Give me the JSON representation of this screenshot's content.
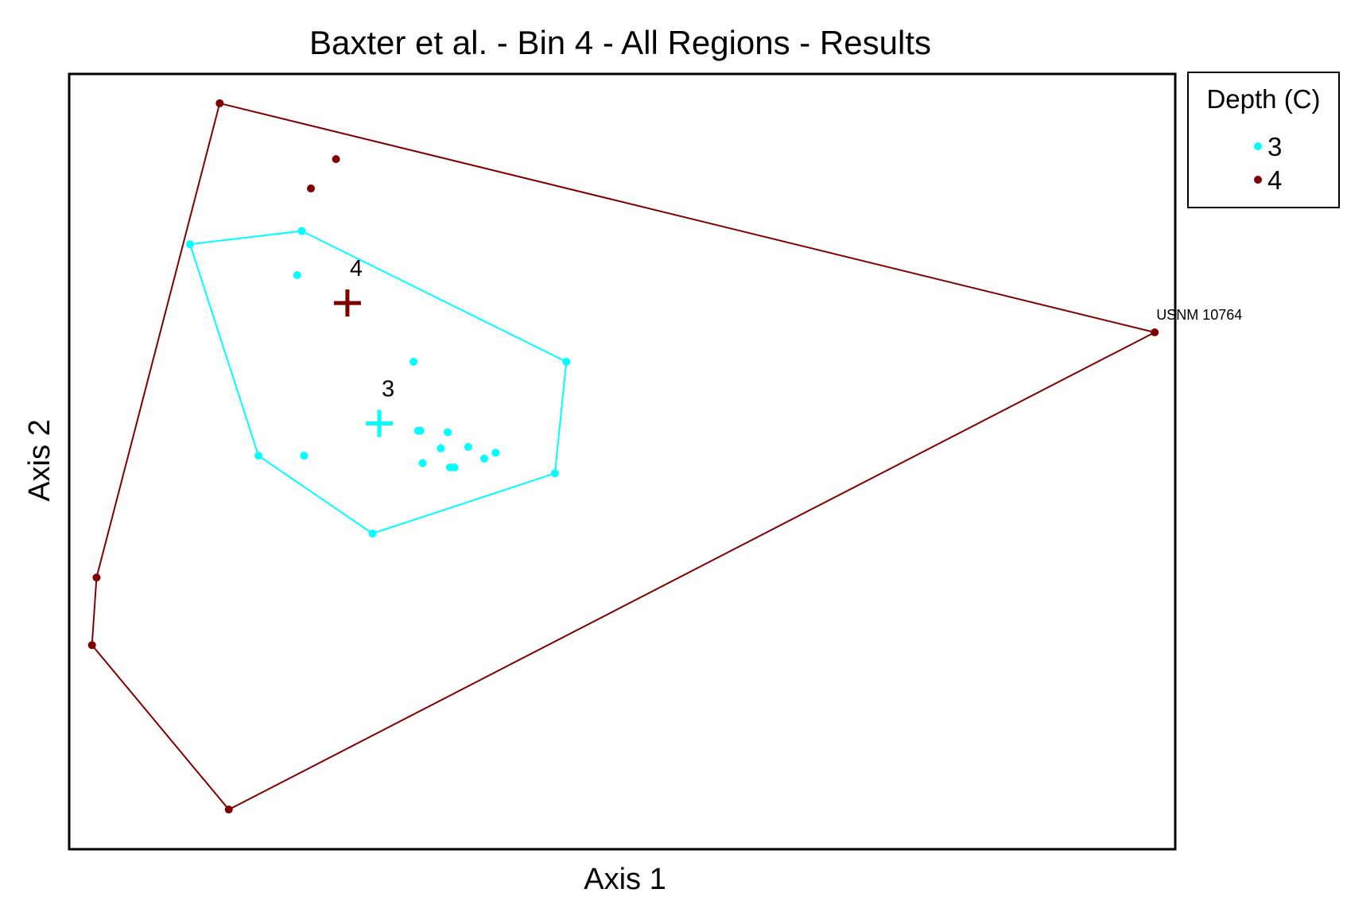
{
  "chart_data": {
    "type": "scatter",
    "title": "Baxter et al. - Bin 4 - All Regions - Results",
    "xlabel": "Axis 1",
    "ylabel": "Axis 2",
    "xlim": [
      -0.25,
      4.6
    ],
    "ylim": [
      -2.93,
      2.35
    ],
    "grid": false,
    "legend": {
      "title": "Depth (C)",
      "placement": "outside-top-right"
    },
    "series": [
      {
        "name": "3",
        "color": "#00ffff",
        "points": [
          [
            0.28,
            1.19
          ],
          [
            0.77,
            1.28
          ],
          [
            0.75,
            0.98
          ],
          [
            1.26,
            0.39
          ],
          [
            0.58,
            -0.25
          ],
          [
            0.78,
            -0.25
          ],
          [
            1.08,
            -0.78
          ],
          [
            1.88,
            -0.37
          ],
          [
            1.93,
            0.39
          ],
          [
            1.28,
            -0.08
          ],
          [
            1.29,
            -0.08
          ],
          [
            1.41,
            -0.09
          ],
          [
            1.5,
            -0.19
          ],
          [
            1.62,
            -0.23
          ],
          [
            1.38,
            -0.2
          ],
          [
            1.57,
            -0.27
          ],
          [
            1.42,
            -0.33
          ],
          [
            1.44,
            -0.33
          ],
          [
            1.3,
            -0.3
          ]
        ],
        "hull": [
          [
            0.28,
            1.19
          ],
          [
            0.77,
            1.28
          ],
          [
            1.93,
            0.39
          ],
          [
            1.88,
            -0.37
          ],
          [
            1.08,
            -0.78
          ],
          [
            0.58,
            -0.25
          ]
        ],
        "centroid": [
          1.11,
          -0.03
        ],
        "centroid_label": "3"
      },
      {
        "name": "4",
        "color": "#800000",
        "points": [
          [
            0.41,
            2.15
          ],
          [
            0.92,
            1.77
          ],
          [
            0.81,
            1.57
          ],
          [
            4.51,
            0.59
          ],
          [
            -0.13,
            -1.08
          ],
          [
            -0.15,
            -1.54
          ],
          [
            0.45,
            -2.66
          ]
        ],
        "hull": [
          [
            0.41,
            2.15
          ],
          [
            4.51,
            0.59
          ],
          [
            0.45,
            -2.66
          ],
          [
            -0.15,
            -1.54
          ],
          [
            -0.13,
            -1.08
          ]
        ],
        "centroid": [
          0.97,
          0.79
        ],
        "centroid_label": "4"
      }
    ],
    "annotations": [
      {
        "text": "USNM 10764",
        "x": 4.51,
        "y": 0.59
      }
    ]
  }
}
